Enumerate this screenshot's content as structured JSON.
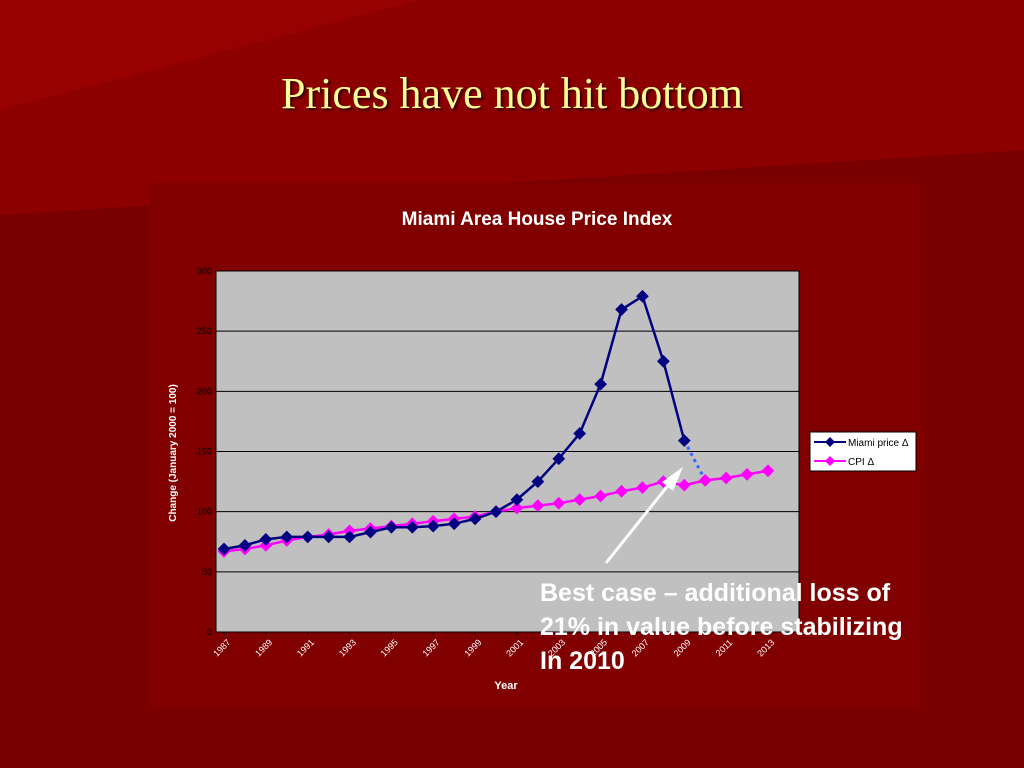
{
  "slide": {
    "title": "Prices have not hit bottom",
    "callout_lines": [
      "Best case – additional loss of",
      "21% in value before stabilizing",
      "In 2010"
    ]
  },
  "colors": {
    "background": "#7a0000",
    "title": "#ffff99",
    "plot_area": "#c0c0c0",
    "miami": "#000080",
    "cpi": "#ff00ff",
    "projection": "#3366ff"
  },
  "chart_data": {
    "type": "line",
    "title": "Miami Area House Price Index",
    "xlabel": "Year",
    "ylabel": "Change (January 2000 = 100)",
    "ylim": [
      0,
      300
    ],
    "yticks": [
      0,
      50,
      100,
      150,
      200,
      250,
      300
    ],
    "xlim": [
      1987,
      2013
    ],
    "xticks": [
      "1987",
      "1989",
      "1991",
      "1993",
      "1995",
      "1997",
      "1999",
      "2001",
      "2003",
      "2005",
      "2007",
      "2009",
      "2011",
      "2013"
    ],
    "grid": true,
    "legend_position": "right",
    "series": [
      {
        "name": "Miami price Δ",
        "color": "#000080",
        "x": [
          1987,
          1988,
          1989,
          1990,
          1991,
          1992,
          1993,
          1994,
          1995,
          1996,
          1997,
          1998,
          1999,
          2000,
          2001,
          2002,
          2003,
          2004,
          2005,
          2006,
          2007,
          2008,
          2009
        ],
        "values": [
          69,
          72,
          77,
          79,
          79,
          79,
          79,
          83,
          87,
          87,
          88,
          90,
          94,
          100,
          110,
          125,
          144,
          165,
          206,
          268,
          279,
          225,
          159
        ]
      },
      {
        "name": "CPI Δ",
        "color": "#ff00ff",
        "x": [
          1987,
          1988,
          1989,
          1990,
          1991,
          1992,
          1993,
          1994,
          1995,
          1996,
          1997,
          1998,
          1999,
          2000,
          2001,
          2002,
          2003,
          2004,
          2005,
          2006,
          2007,
          2008,
          2009,
          2010,
          2011,
          2012,
          2013
        ],
        "values": [
          67,
          69,
          72,
          76,
          79,
          81,
          84,
          86,
          88,
          90,
          92,
          94,
          96,
          100,
          103,
          105,
          107,
          110,
          113,
          117,
          120,
          125,
          122,
          126,
          128,
          131,
          134
        ]
      }
    ],
    "projection": {
      "x": [
        2009,
        2010
      ],
      "values": [
        159,
        126
      ]
    }
  }
}
